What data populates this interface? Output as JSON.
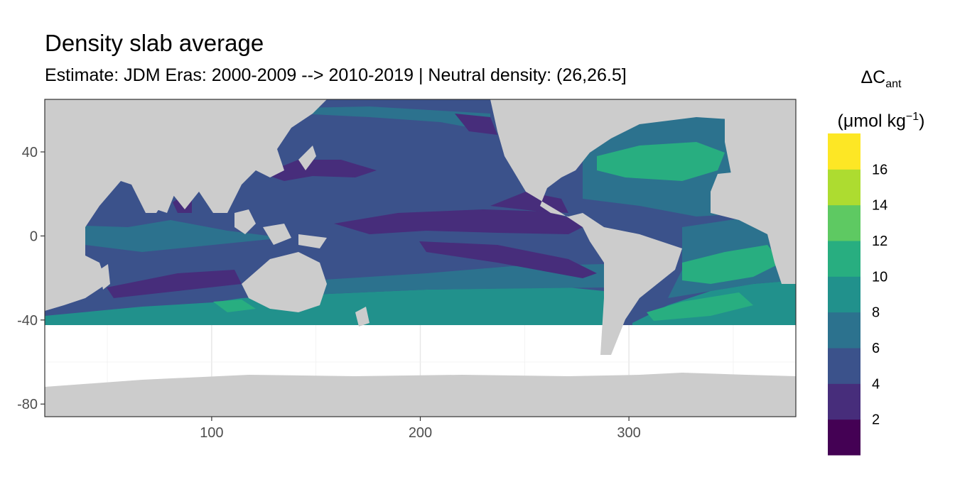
{
  "chart": {
    "title": "Density slab average",
    "subtitle": "Estimate: JDM Eras: 2000-2009 --> 2010-2019 | Neutral density: (26,26.5]"
  },
  "legend": {
    "delta": "ΔC",
    "sub": "ant",
    "unit_open": "(μmol kg",
    "unit_sup": "−1",
    "unit_close": ")"
  },
  "colors": {
    "land": "#cccccc",
    "ocean_nodata": "#ffffff",
    "bins": [
      "#440154",
      "#472d7b",
      "#3b528b",
      "#2c728e",
      "#21918c",
      "#28ae80",
      "#5ec962",
      "#addc30",
      "#fde725"
    ]
  },
  "chart_data": {
    "type": "heatmap",
    "xlim": [
      20,
      380
    ],
    "ylim": [
      -86,
      65
    ],
    "x_ticks": [
      100,
      200,
      300
    ],
    "y_ticks": [
      40,
      0,
      -40,
      -80
    ],
    "legend_breaks": [
      2,
      4,
      6,
      8,
      10,
      12,
      14,
      16
    ],
    "legend_range": [
      0,
      18
    ],
    "legend_placement": "right",
    "grid": true
  }
}
